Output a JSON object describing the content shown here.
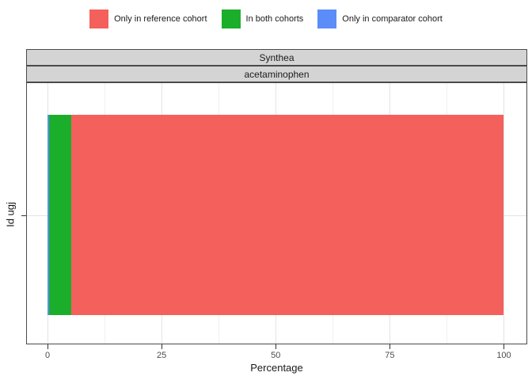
{
  "legend": {
    "position": "top",
    "items": [
      {
        "label": "Only in reference cohort",
        "color": "#F4605C"
      },
      {
        "label": "In both cohorts",
        "color": "#1BAE2B"
      },
      {
        "label": "Only in comparator cohort",
        "color": "#5B8CF8"
      }
    ]
  },
  "facet_strips": {
    "database": "Synthea",
    "cohort": "acetaminophen"
  },
  "x_axis": {
    "title": "Percentage",
    "tick_labels": [
      "0",
      "25",
      "50",
      "75",
      "100"
    ]
  },
  "y_axis": {
    "title": "Id ugj"
  },
  "chart_data": {
    "type": "bar",
    "orientation": "horizontal",
    "stacked": true,
    "title": "",
    "xlabel": "Percentage",
    "ylabel": "Id ugj",
    "xlim": [
      0,
      100
    ],
    "x_major_ticks": [
      0,
      25,
      50,
      75,
      100
    ],
    "x_minor_ticks": [
      12.5,
      37.5,
      62.5,
      87.5
    ],
    "grid": "on",
    "legend_position": "top",
    "facets": [
      "Synthea",
      "acetaminophen"
    ],
    "categories": [
      "Id ugj"
    ],
    "series": [
      {
        "name": "Only in comparator cohort",
        "color": "#5B8CF8",
        "values": [
          0.4
        ]
      },
      {
        "name": "In both cohorts",
        "color": "#1BAE2B",
        "values": [
          4.8
        ]
      },
      {
        "name": "Only in reference cohort",
        "color": "#F4605C",
        "values": [
          94.8
        ]
      }
    ]
  },
  "colors": {
    "reference_only": "#F4605C",
    "both": "#1BAE2B",
    "comparator_only": "#5B8CF8",
    "strip_bg": "#D4D4D4",
    "strip_border": "#4A4A4A",
    "panel_border": "#4A4A4A",
    "grid_major": "#E3E3E3",
    "grid_minor": "#F0F0F0",
    "tick": "#333333",
    "tick_label": "#4D4D4D",
    "text": "#1A1A1A"
  }
}
